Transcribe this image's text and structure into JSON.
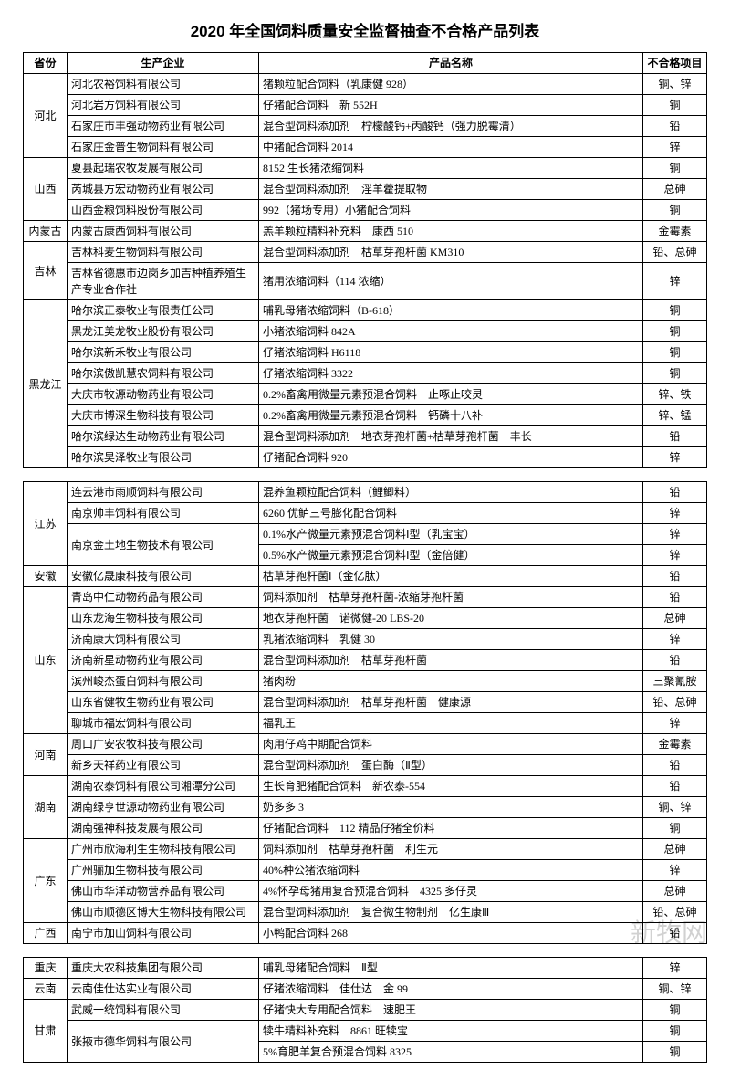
{
  "title": "2020 年全国饲料质量安全监督抽查不合格产品列表",
  "headers": {
    "province": "省份",
    "company": "生产企业",
    "product": "产品名称",
    "item": "不合格项目"
  },
  "watermark": "新牧网",
  "sections": [
    {
      "group": [
        {
          "province": "河北",
          "rows": [
            {
              "company": "河北农裕饲料有限公司",
              "product": "猪颗粒配合饲料（乳康健 928）",
              "item": "铜、锌"
            },
            {
              "company": "河北岩方饲料有限公司",
              "product": "仔猪配合饲料　新 552H",
              "item": "铜"
            },
            {
              "company": "石家庄市丰强动物药业有限公司",
              "product": "混合型饲料添加剂　柠檬酸钙+丙酸钙（强力脱霉清）",
              "item": "铅"
            },
            {
              "company": "石家庄金普生物饲料有限公司",
              "product": "中猪配合饲料 2014",
              "item": "锌"
            }
          ]
        },
        {
          "province": "山西",
          "rows": [
            {
              "company": "夏县起瑞农牧发展有限公司",
              "product": "8152 生长猪浓缩饲料",
              "item": "铜"
            },
            {
              "company": "芮城县方宏动物药业有限公司",
              "product": "混合型饲料添加剂　淫羊藿提取物",
              "item": "总砷"
            },
            {
              "company": "山西金粮饲料股份有限公司",
              "product": "992（猪场专用）小猪配合饲料",
              "item": "铜"
            }
          ]
        },
        {
          "province": "内蒙古",
          "rows": [
            {
              "company": "内蒙古康西饲料有限公司",
              "product": "羔羊颗粒精料补充料　康西 510",
              "item": "金霉素"
            }
          ]
        },
        {
          "province": "吉林",
          "rows": [
            {
              "company": "吉林科麦生物饲料有限公司",
              "product": "混合型饲料添加剂　枯草芽孢杆菌 KM310",
              "item": "铅、总砷"
            },
            {
              "company": "吉林省德惠市边岗乡加吉种植养殖生产专业合作社",
              "product": "猪用浓缩饲料（114 浓缩）",
              "item": "锌"
            }
          ]
        },
        {
          "province": "黑龙江",
          "rows": [
            {
              "company": "哈尔滨正泰牧业有限责任公司",
              "product": "哺乳母猪浓缩饲料（B-618）",
              "item": "铜"
            },
            {
              "company": "黑龙江美龙牧业股份有限公司",
              "product": "小猪浓缩饲料 842A",
              "item": "铜"
            },
            {
              "company": "哈尔滨新禾牧业有限公司",
              "product": "仔猪浓缩饲料 H6118",
              "item": "铜"
            },
            {
              "company": "哈尔滨傲凯慧农饲料有限公司",
              "product": "仔猪浓缩饲料 3322",
              "item": "铜"
            },
            {
              "company": "大庆市牧源动物药业有限公司",
              "product": "0.2%畜禽用微量元素预混合饲料　止啄止咬灵",
              "item": "锌、铁"
            },
            {
              "company": "大庆市博深生物科技有限公司",
              "product": "0.2%畜禽用微量元素预混合饲料　钙磷十八补",
              "item": "锌、锰"
            },
            {
              "company": "哈尔滨绿达生动物药业有限公司",
              "product": "混合型饲料添加剂　地衣芽孢杆菌+枯草芽孢杆菌　丰长",
              "item": "铅"
            },
            {
              "company": "哈尔滨昊泽牧业有限公司",
              "product": "仔猪配合饲料 920",
              "item": "锌"
            }
          ]
        }
      ]
    },
    {
      "group": [
        {
          "province": "江苏",
          "rows": [
            {
              "company": "连云港市雨顺饲料有限公司",
              "product": "混养鱼颗粒配合饲料（鲤鲫料）",
              "item": "铅"
            },
            {
              "company": "南京帅丰饲料有限公司",
              "product": "6260 优鲈三号膨化配合饲料",
              "item": "锌"
            },
            {
              "company": "南京金土地生物技术有限公司",
              "product": "0.1%水产微量元素预混合饲料Ⅰ型（乳宝宝）",
              "item": "锌",
              "rowspanCompany": 2
            },
            {
              "company": "",
              "product": "0.5%水产微量元素预混合饲料Ⅰ型（金倍健）",
              "item": "锌",
              "mergedCompany": true
            }
          ]
        },
        {
          "province": "安徽",
          "rows": [
            {
              "company": "安徽亿晟康科技有限公司",
              "product": "枯草芽孢杆菌Ⅰ（金亿肽）",
              "item": "铅"
            }
          ]
        },
        {
          "province": "山东",
          "rows": [
            {
              "company": "青岛中仁动物药品有限公司",
              "product": "饲料添加剂　枯草芽孢杆菌-浓缩芽孢杆菌",
              "item": "铅"
            },
            {
              "company": "山东龙海生物科技有限公司",
              "product": "地衣芽孢杆菌　诺微健-20 LBS-20",
              "item": "总砷"
            },
            {
              "company": "济南康大饲料有限公司",
              "product": "乳猪浓缩饲料　乳健 30",
              "item": "锌"
            },
            {
              "company": "济南新星动物药业有限公司",
              "product": "混合型饲料添加剂　枯草芽孢杆菌",
              "item": "铅"
            },
            {
              "company": "滨州峻杰蛋白饲料有限公司",
              "product": "猪肉粉",
              "item": "三聚氰胺"
            },
            {
              "company": "山东省健牧生物药业有限公司",
              "product": "混合型饲料添加剂　枯草芽孢杆菌　健康源",
              "item": "铅、总砷"
            },
            {
              "company": "聊城市福宏饲料有限公司",
              "product": "福乳王",
              "item": "锌"
            }
          ]
        },
        {
          "province": "河南",
          "rows": [
            {
              "company": "周口广安农牧科技有限公司",
              "product": "肉用仔鸡中期配合饲料",
              "item": "金霉素"
            },
            {
              "company": "新乡天祥药业有限公司",
              "product": "混合型饲料添加剂　蛋白酶（Ⅱ型）",
              "item": "铅"
            }
          ]
        },
        {
          "province": "湖南",
          "rows": [
            {
              "company": "湖南农泰饲料有限公司湘潭分公司",
              "product": "生长育肥猪配合饲料　新农泰-554",
              "item": "铅"
            },
            {
              "company": "湖南绿亨世源动物药业有限公司",
              "product": "奶多多 3",
              "item": "铜、锌"
            },
            {
              "company": "湖南强神科技发展有限公司",
              "product": "仔猪配合饲料　112 精品仔猪全价料",
              "item": "铜"
            }
          ]
        },
        {
          "province": "广东",
          "rows": [
            {
              "company": "广州市欣海利生生物科技有限公司",
              "product": "饲料添加剂　枯草芽孢杆菌　利生元",
              "item": "总砷"
            },
            {
              "company": "广州骊加生物科技有限公司",
              "product": "40%种公猪浓缩饲料",
              "item": "锌"
            },
            {
              "company": "佛山市华洋动物营养品有限公司",
              "product": "4%怀孕母猪用复合预混合饲料　4325 多仔灵",
              "item": "总砷"
            },
            {
              "company": "佛山市顺德区博大生物科技有限公司",
              "product": "混合型饲料添加剂　复合微生物制剂　亿生康Ⅲ",
              "item": "铅、总砷"
            }
          ]
        },
        {
          "province": "广西",
          "rows": [
            {
              "company": "南宁市加山饲料有限公司",
              "product": "小鸭配合饲料 268",
              "item": "铅"
            }
          ]
        }
      ]
    },
    {
      "group": [
        {
          "province": "重庆",
          "rows": [
            {
              "company": "重庆大农科技集团有限公司",
              "product": "哺乳母猪配合饲料　Ⅱ型",
              "item": "锌"
            }
          ]
        },
        {
          "province": "云南",
          "rows": [
            {
              "company": "云南佳仕达实业有限公司",
              "product": "仔猪浓缩饲料　佳仕达　金 99",
              "item": "铜、锌"
            }
          ]
        },
        {
          "province": "甘肃",
          "rows": [
            {
              "company": "武威一统饲料有限公司",
              "product": "仔猪快大专用配合饲料　速肥王",
              "item": "铜"
            },
            {
              "company": "张掖市德华饲料有限公司",
              "product": "犊牛精料补充料　8861 旺犊宝",
              "item": "铜",
              "rowspanCompany": 2
            },
            {
              "company": "",
              "product": "5%育肥羊复合预混合饲料 8325",
              "item": "铜",
              "mergedCompany": true
            }
          ]
        }
      ]
    }
  ]
}
